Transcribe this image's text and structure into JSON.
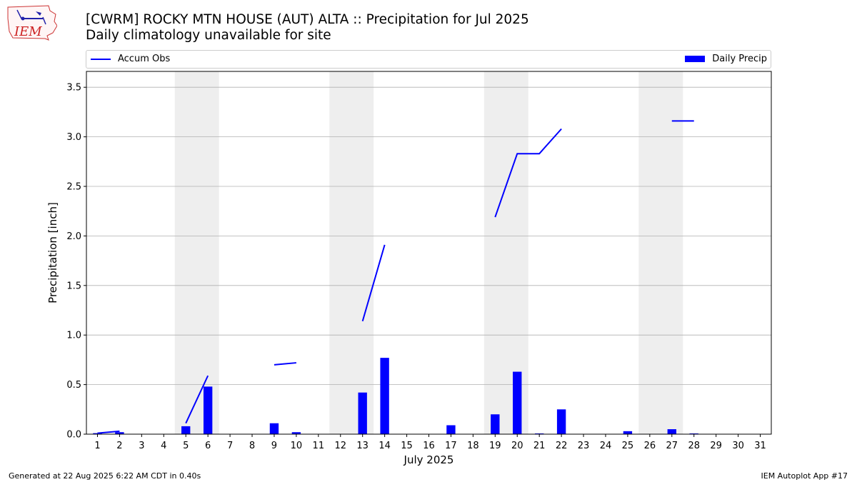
{
  "logo": {
    "text": "IEM"
  },
  "title": "[CWRM] ROCKY MTN HOUSE (AUT)  ALTA :: Precipitation for Jul 2025",
  "subtitle": "Daily climatology unavailable for site",
  "legend": {
    "line_label": "Accum Obs",
    "bar_label": "Daily Precip",
    "placement": "top"
  },
  "footer": {
    "left": "Generated at 22 Aug 2025 6:22 AM CDT in 0.40s",
    "right": "IEM Autoplot App #17"
  },
  "colors": {
    "series": "#0000ff",
    "weekend_band": "#eeeeee",
    "grid": "#b0b0b0"
  },
  "chart_data": {
    "type": "bar",
    "xlabel": "July 2025",
    "ylabel": "Precipitation [inch]",
    "ylim": [
      0,
      3.66
    ],
    "xlim": [
      0.5,
      31.5
    ],
    "grid": "horizontal",
    "x_ticks": [
      "1",
      "2",
      "3",
      "4",
      "5",
      "6",
      "7",
      "8",
      "9",
      "10",
      "11",
      "12",
      "13",
      "14",
      "15",
      "16",
      "17",
      "18",
      "19",
      "20",
      "21",
      "22",
      "23",
      "24",
      "25",
      "26",
      "27",
      "28",
      "29",
      "30",
      "31"
    ],
    "y_ticks": [
      "0.0",
      "0.5",
      "1.0",
      "1.5",
      "2.0",
      "2.5",
      "3.0",
      "3.5"
    ],
    "weekend_days": [
      5,
      6,
      12,
      13,
      19,
      20,
      26,
      27
    ],
    "series": [
      {
        "name": "Daily Precip",
        "kind": "bar",
        "x": [
          1,
          2,
          5,
          6,
          9,
          10,
          13,
          14,
          17,
          19,
          20,
          21,
          22,
          25,
          27,
          28
        ],
        "values": [
          0.01,
          0.02,
          0.08,
          0.48,
          0.11,
          0.02,
          0.42,
          0.77,
          0.09,
          0.2,
          0.63,
          0.005,
          0.25,
          0.03,
          0.05,
          0.005
        ]
      },
      {
        "name": "Accum Obs",
        "kind": "line",
        "segments": [
          {
            "x": [
              1,
              2
            ],
            "y": [
              0.01,
              0.03
            ]
          },
          {
            "x": [
              5,
              6
            ],
            "y": [
              0.11,
              0.59
            ]
          },
          {
            "x": [
              9,
              10
            ],
            "y": [
              0.7,
              0.72
            ]
          },
          {
            "x": [
              13,
              14
            ],
            "y": [
              1.14,
              1.91
            ]
          },
          {
            "x": [
              19,
              20,
              21,
              22
            ],
            "y": [
              2.19,
              2.83,
              2.83,
              3.08
            ]
          },
          {
            "x": [
              27,
              28
            ],
            "y": [
              3.16,
              3.16
            ]
          }
        ]
      }
    ]
  }
}
